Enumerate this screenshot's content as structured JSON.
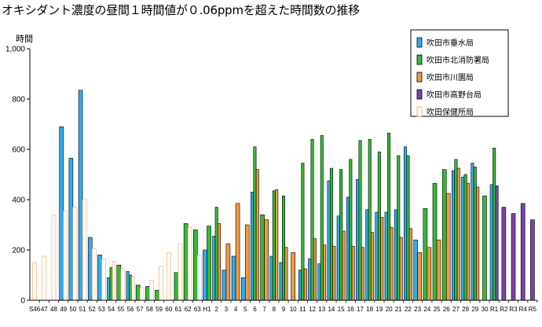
{
  "chart_data": {
    "type": "bar",
    "title": "オキシダント濃度の昼間１時間値が０.06ppmを超えた時間数の推移",
    "ylabel": "時間",
    "xlabel": "",
    "ylim": [
      0,
      1000
    ],
    "yticks": [
      "0",
      "200",
      "400",
      "600",
      "800",
      "1,000"
    ],
    "grid": false,
    "legend_position": "top-right",
    "categories": [
      "S46",
      "47",
      "48",
      "49",
      "50",
      "51",
      "52",
      "53",
      "54",
      "55",
      "56",
      "57",
      "58",
      "59",
      "60",
      "61",
      "62",
      "63",
      "H1",
      "2",
      "3",
      "4",
      "5",
      "6",
      "7",
      "8",
      "9",
      "10",
      "11",
      "12",
      "13",
      "14",
      "15",
      "16",
      "17",
      "18",
      "19",
      "20",
      "21",
      "22",
      "23",
      "24",
      "25",
      "26",
      "27",
      "28",
      "29",
      "30",
      "R1",
      "R2",
      "R3",
      "R4",
      "R5"
    ],
    "series": [
      {
        "name": "吹田市垂水局",
        "color": "#33aaee",
        "values": [
          null,
          null,
          null,
          690,
          565,
          835,
          250,
          180,
          90,
          null,
          115,
          null,
          null,
          null,
          null,
          null,
          null,
          null,
          200,
          255,
          120,
          175,
          90,
          430,
          null,
          175,
          150,
          null,
          120,
          165,
          145,
          475,
          335,
          410,
          480,
          360,
          350,
          350,
          360,
          610,
          240,
          null,
          null,
          null,
          515,
          490,
          545,
          null,
          460,
          null,
          null,
          null,
          null
        ]
      },
      {
        "name": "吹田市北消防署局",
        "color": "#33bb33",
        "values": [
          null,
          null,
          null,
          null,
          null,
          null,
          null,
          null,
          130,
          140,
          100,
          60,
          55,
          40,
          null,
          110,
          305,
          280,
          295,
          370,
          null,
          null,
          null,
          610,
          340,
          435,
          415,
          null,
          545,
          640,
          655,
          525,
          520,
          560,
          635,
          640,
          590,
          665,
          575,
          575,
          null,
          365,
          465,
          520,
          560,
          500,
          530,
          415,
          605,
          null,
          null,
          null,
          null
        ]
      },
      {
        "name": "吹田市川園局",
        "color": "#ee9944",
        "values": [
          null,
          null,
          null,
          null,
          null,
          null,
          null,
          null,
          null,
          null,
          null,
          null,
          null,
          null,
          null,
          null,
          null,
          null,
          null,
          305,
          225,
          385,
          300,
          520,
          320,
          440,
          210,
          190,
          125,
          245,
          220,
          215,
          275,
          215,
          210,
          270,
          330,
          290,
          250,
          285,
          190,
          210,
          240,
          425,
          525,
          465,
          450,
          null,
          null,
          null,
          null,
          null,
          null
        ]
      },
      {
        "name": "吹田市高野台局",
        "color": "#7744aa",
        "values": [
          null,
          null,
          null,
          null,
          null,
          null,
          null,
          null,
          null,
          null,
          null,
          null,
          null,
          null,
          null,
          null,
          null,
          null,
          null,
          null,
          null,
          null,
          null,
          null,
          null,
          null,
          null,
          null,
          null,
          null,
          null,
          null,
          null,
          null,
          null,
          null,
          null,
          null,
          null,
          null,
          null,
          null,
          null,
          null,
          null,
          null,
          null,
          null,
          455,
          370,
          345,
          385,
          320
        ]
      },
      {
        "name": "吹田保健所局",
        "color": "#ffffff",
        "stroke": "#f0a060",
        "values": [
          150,
          175,
          340,
          355,
          370,
          400,
          205,
          165,
          155,
          125,
          95,
          50,
          80,
          135,
          190,
          225,
          290,
          180,
          null,
          null,
          null,
          null,
          null,
          null,
          null,
          null,
          null,
          null,
          null,
          null,
          null,
          null,
          null,
          null,
          null,
          null,
          null,
          null,
          null,
          null,
          null,
          null,
          null,
          null,
          null,
          null,
          null,
          null,
          null,
          null,
          null,
          null,
          null
        ]
      }
    ],
    "extra_bars": [
      {
        "category": "29",
        "color": "#33bb33",
        "value": null
      }
    ]
  }
}
